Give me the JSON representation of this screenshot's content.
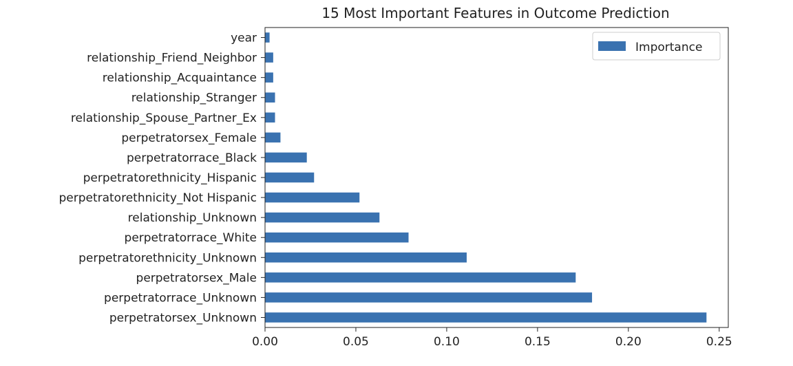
{
  "chart_data": {
    "type": "bar",
    "orientation": "horizontal",
    "title": "15 Most Important Features in Outcome Prediction",
    "xlabel": "",
    "ylabel": "",
    "xlim": [
      0,
      0.255
    ],
    "xticks": [
      0.0,
      0.05,
      0.1,
      0.15,
      0.2,
      0.25
    ],
    "xtick_labels": [
      "0.00",
      "0.05",
      "0.10",
      "0.15",
      "0.20",
      "0.25"
    ],
    "grid": false,
    "legend_position": "top-right",
    "categories": [
      "year",
      "relationship_Friend_Neighbor",
      "relationship_Acquaintance",
      "relationship_Stranger",
      "relationship_Spouse_Partner_Ex",
      "perpetratorsex_Female",
      "perpetratorrace_Black",
      "perpetratorethnicity_Hispanic",
      "perpetratorethnicity_Not Hispanic",
      "relationship_Unknown",
      "perpetratorrace_White",
      "perpetratorethnicity_Unknown",
      "perpetratorsex_Male",
      "perpetratorrace_Unknown",
      "perpetratorsex_Unknown"
    ],
    "series": [
      {
        "name": "Importance",
        "color": "#3a72b0",
        "values": [
          0.0025,
          0.0045,
          0.0045,
          0.0055,
          0.0055,
          0.0085,
          0.023,
          0.027,
          0.052,
          0.063,
          0.079,
          0.111,
          0.171,
          0.18,
          0.243
        ]
      }
    ]
  }
}
